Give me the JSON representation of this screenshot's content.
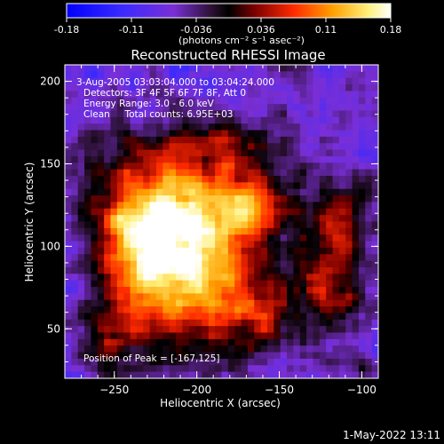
{
  "colorbar": {
    "tick_labels": [
      "-0.18",
      "-0.11",
      "-0.036",
      "0.036",
      "0.11",
      "0.18"
    ],
    "unit_label": "(photons cm⁻² s⁻¹ asec⁻²)",
    "range": [
      -0.18,
      0.18
    ]
  },
  "chart_data": {
    "type": "heatmap",
    "title": "Reconstructed RHESSI Image",
    "xlabel": "Heliocentric X (arcsec)",
    "ylabel": "Heliocentric Y (arcsec)",
    "xlim": [
      -280,
      -90
    ],
    "ylim": [
      20,
      210
    ],
    "x_ticks": [
      -250,
      -200,
      -150,
      -100
    ],
    "y_ticks": [
      50,
      100,
      150,
      200
    ],
    "colormap": [
      "#0000ff",
      "#7a2fd6",
      "#2a1030",
      "#000000",
      "#7a0000",
      "#ff2a00",
      "#ffa000",
      "#fff07a",
      "#ffffff"
    ],
    "peak_position": [
      -167,
      125
    ],
    "blobs": [
      {
        "x": -210,
        "y": 125,
        "sx": 35,
        "sy": 30,
        "amp": 0.17
      },
      {
        "x": -200,
        "y": 75,
        "sx": 25,
        "sy": 30,
        "amp": 0.15
      },
      {
        "x": -167,
        "y": 125,
        "sx": 14,
        "sy": 12,
        "amp": 0.12
      },
      {
        "x": -235,
        "y": 95,
        "sx": 18,
        "sy": 28,
        "amp": 0.12
      },
      {
        "x": -115,
        "y": 110,
        "sx": 14,
        "sy": 22,
        "amp": 0.1
      },
      {
        "x": -120,
        "y": 70,
        "sx": 12,
        "sy": 20,
        "amp": 0.09
      },
      {
        "x": -250,
        "y": 45,
        "sx": 14,
        "sy": 16,
        "amp": 0.08
      },
      {
        "x": -160,
        "y": 60,
        "sx": 18,
        "sy": 18,
        "amp": 0.07
      },
      {
        "x": -175,
        "y": 165,
        "sx": 22,
        "sy": 10,
        "amp": 0.05
      },
      {
        "x": -100,
        "y": 25,
        "sx": 6,
        "sy": 5,
        "amp": 0.08
      }
    ],
    "annotations": [
      " 3-Aug-2005 03:03:04.000 to 03:04:24.000",
      "Detectors: 3F 4F 5F 6F 7F 8F, Att 0",
      "Energy Range: 3.0 - 6.0 keV",
      "Clean     Total counts: 6.95E+03"
    ],
    "peak_label": "Position of Peak = [-167,125]"
  },
  "footer": {
    "date": "1-May-2022 13:11"
  }
}
